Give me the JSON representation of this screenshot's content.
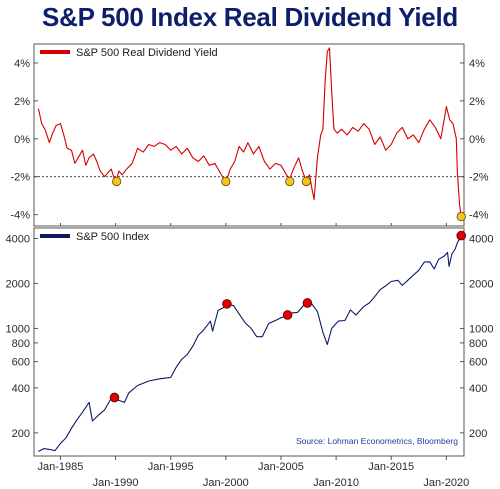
{
  "title": "S&P 500 Index Real Dividend Yield",
  "source": "Source: Lohman Econometrics, Bloomberg",
  "colors": {
    "title": "#0d1f6b",
    "yield_line": "#d40000",
    "index_line": "#0b1a63",
    "dot_fill_yield": "#f5c518",
    "dot_fill_index": "#e00000",
    "dot_stroke": "#5a4a00",
    "dashed_line": "#333333"
  },
  "x_tick_labels": [
    {
      "year": 1985,
      "label": "Jan-1985",
      "row": "top"
    },
    {
      "year": 1990,
      "label": "Jan-1990",
      "row": "bottom"
    },
    {
      "year": 1995,
      "label": "Jan-1995",
      "row": "top"
    },
    {
      "year": 2000,
      "label": "Jan-2000",
      "row": "bottom"
    },
    {
      "year": 2005,
      "label": "Jan-2005",
      "row": "top"
    },
    {
      "year": 2010,
      "label": "Jan-2010",
      "row": "bottom"
    },
    {
      "year": 2015,
      "label": "Jan-2015",
      "row": "top"
    },
    {
      "year": 2020,
      "label": "Jan-2020",
      "row": "bottom"
    }
  ],
  "chart_data": [
    {
      "type": "line",
      "title": "",
      "legend": "S&P 500 Real Dividend Yield",
      "ylim": [
        -4.6,
        5.0
      ],
      "yticks": [
        {
          "v": 4,
          "label": "4%"
        },
        {
          "v": 2,
          "label": "2%"
        },
        {
          "v": 0,
          "label": "0%"
        },
        {
          "v": -2,
          "label": "-2%"
        },
        {
          "v": -4,
          "label": "-4%"
        }
      ],
      "reference_line": -2,
      "grid": false,
      "xlim": [
        1982.6,
        2021.6
      ],
      "x": [
        1983.0,
        1983.3,
        1983.6,
        1984.0,
        1984.3,
        1984.6,
        1985.0,
        1985.3,
        1985.6,
        1986.0,
        1986.3,
        1986.6,
        1987.0,
        1987.3,
        1987.6,
        1988.0,
        1988.3,
        1988.6,
        1989.0,
        1989.3,
        1989.6,
        1990.0,
        1990.3,
        1990.6,
        1991.0,
        1991.5,
        1992.0,
        1992.5,
        1993.0,
        1993.5,
        1994.0,
        1994.5,
        1995.0,
        1995.5,
        1996.0,
        1996.5,
        1997.0,
        1997.5,
        1998.0,
        1998.5,
        1999.0,
        1999.5,
        2000.0,
        2000.4,
        2000.8,
        2001.2,
        2001.6,
        2002.0,
        2002.5,
        2003.0,
        2003.5,
        2004.0,
        2004.5,
        2005.0,
        2005.5,
        2005.8,
        2006.2,
        2006.6,
        2007.0,
        2007.3,
        2007.6,
        2007.8,
        2008.0,
        2008.3,
        2008.6,
        2008.8,
        2009.0,
        2009.2,
        2009.4,
        2009.6,
        2009.8,
        2010.1,
        2010.5,
        2011.0,
        2011.5,
        2012.0,
        2012.5,
        2013.0,
        2013.5,
        2014.0,
        2014.5,
        2015.0,
        2015.5,
        2016.0,
        2016.5,
        2017.0,
        2017.5,
        2018.0,
        2018.5,
        2019.0,
        2019.5,
        2020.0,
        2020.3,
        2020.6,
        2020.9,
        2021.0,
        2021.2,
        2021.35
      ],
      "series": [
        {
          "name": "S&P 500 Real Dividend Yield",
          "values": [
            1.6,
            0.8,
            0.5,
            -0.2,
            0.3,
            0.7,
            0.8,
            0.2,
            -0.5,
            -0.6,
            -1.3,
            -1.0,
            -0.6,
            -1.4,
            -1.0,
            -0.8,
            -1.2,
            -1.7,
            -2.0,
            -1.8,
            -1.6,
            -2.3,
            -1.7,
            -1.9,
            -1.6,
            -1.3,
            -0.5,
            -0.7,
            -0.3,
            -0.4,
            -0.2,
            -0.3,
            -0.6,
            -0.4,
            -0.8,
            -0.5,
            -1.0,
            -1.2,
            -0.9,
            -1.4,
            -1.3,
            -1.8,
            -2.3,
            -1.6,
            -1.2,
            -0.4,
            -0.7,
            -0.2,
            -0.8,
            -0.4,
            -1.2,
            -1.6,
            -1.3,
            -1.4,
            -1.9,
            -2.1,
            -1.5,
            -1.0,
            -1.8,
            -2.2,
            -1.9,
            -2.6,
            -3.2,
            -1.0,
            0.2,
            0.5,
            3.0,
            4.6,
            4.8,
            2.5,
            0.5,
            0.3,
            0.5,
            0.2,
            0.6,
            0.4,
            0.8,
            0.5,
            -0.3,
            0.1,
            -0.6,
            -0.3,
            0.3,
            0.6,
            0.0,
            0.2,
            -0.2,
            0.5,
            1.0,
            0.6,
            0.0,
            1.7,
            1.0,
            0.8,
            0.0,
            -1.8,
            -3.5,
            -4.1
          ]
        }
      ],
      "highlights": [
        {
          "x": 1990.1,
          "y": -2.25
        },
        {
          "x": 2000.0,
          "y": -2.25
        },
        {
          "x": 2005.8,
          "y": -2.25
        },
        {
          "x": 2007.3,
          "y": -2.25
        },
        {
          "x": 2021.35,
          "y": -4.1
        }
      ]
    },
    {
      "type": "line",
      "title": "",
      "legend": "S&P 500 Index",
      "scale": "log",
      "ylim": [
        140,
        4700
      ],
      "yticks": [
        {
          "v": 4000,
          "label": "4000"
        },
        {
          "v": 2000,
          "label": "2000"
        },
        {
          "v": 1000,
          "label": "1000"
        },
        {
          "v": 800,
          "label": "800"
        },
        {
          "v": 600,
          "label": "600"
        },
        {
          "v": 400,
          "label": "400"
        },
        {
          "v": 200,
          "label": "200"
        }
      ],
      "grid": false,
      "xlim": [
        1982.6,
        2021.6
      ],
      "x": [
        1983.0,
        1983.5,
        1984.0,
        1984.5,
        1985.0,
        1985.5,
        1986.0,
        1986.5,
        1987.0,
        1987.6,
        1987.9,
        1988.5,
        1989.0,
        1989.6,
        1990.3,
        1990.8,
        1991.2,
        1992.0,
        1993.0,
        1994.0,
        1995.0,
        1995.5,
        1996.0,
        1996.5,
        1997.0,
        1997.5,
        1998.0,
        1998.6,
        1998.8,
        1999.3,
        1999.8,
        2000.2,
        2000.7,
        2001.2,
        2001.8,
        2002.3,
        2002.8,
        2003.3,
        2003.9,
        2004.5,
        2005.0,
        2005.5,
        2006.0,
        2006.5,
        2007.0,
        2007.4,
        2007.8,
        2008.3,
        2008.8,
        2009.2,
        2009.6,
        2010.2,
        2010.8,
        2011.3,
        2011.8,
        2012.5,
        2013.0,
        2013.5,
        2014.0,
        2014.5,
        2015.0,
        2015.6,
        2016.0,
        2016.5,
        2017.0,
        2017.5,
        2018.0,
        2018.5,
        2018.9,
        2019.3,
        2019.8,
        2020.1,
        2020.25,
        2020.5,
        2020.8,
        2021.0,
        2021.35
      ],
      "series": [
        {
          "name": "S&P 500 Index",
          "values": [
            150,
            157,
            155,
            152,
            170,
            185,
            215,
            245,
            275,
            320,
            240,
            265,
            285,
            340,
            330,
            320,
            370,
            415,
            445,
            460,
            470,
            550,
            620,
            670,
            760,
            900,
            980,
            1120,
            960,
            1320,
            1380,
            1450,
            1420,
            1250,
            1080,
            1000,
            880,
            880,
            1080,
            1130,
            1180,
            1210,
            1270,
            1280,
            1410,
            1500,
            1460,
            1300,
            940,
            780,
            1000,
            1120,
            1130,
            1330,
            1230,
            1400,
            1480,
            1630,
            1820,
            1930,
            2060,
            2100,
            1940,
            2100,
            2270,
            2450,
            2780,
            2790,
            2500,
            2900,
            3050,
            3230,
            2600,
            3150,
            3400,
            3750,
            4180
          ]
        }
      ],
      "highlights": [
        {
          "x": 1989.9,
          "y": 345
        },
        {
          "x": 2000.1,
          "y": 1460
        },
        {
          "x": 2005.6,
          "y": 1230
        },
        {
          "x": 2007.4,
          "y": 1480
        },
        {
          "x": 2021.35,
          "y": 4180
        }
      ]
    }
  ]
}
